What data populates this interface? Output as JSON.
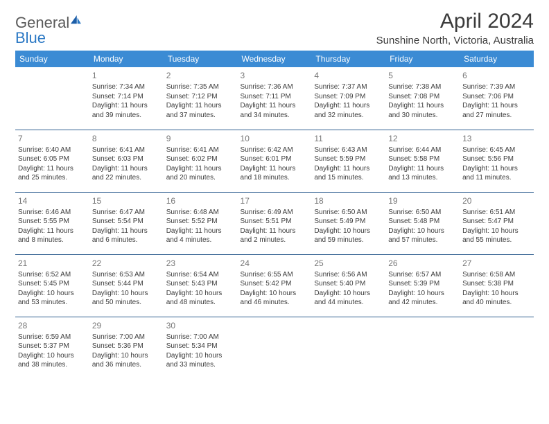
{
  "brand": {
    "word1": "General",
    "word2": "Blue"
  },
  "title": "April 2024",
  "location": "Sunshine North, Victoria, Australia",
  "headers": [
    "Sunday",
    "Monday",
    "Tuesday",
    "Wednesday",
    "Thursday",
    "Friday",
    "Saturday"
  ],
  "colors": {
    "header_bg": "#3b8bd4",
    "header_fg": "#ffffff",
    "row_border": "#2d5d8f",
    "text": "#3a3a3a",
    "daynum": "#777777",
    "brand_gray": "#5a5a5a",
    "brand_blue": "#2b78c4"
  },
  "first_weekday_index": 1,
  "days": [
    {
      "n": 1,
      "sunrise": "7:34 AM",
      "sunset": "7:14 PM",
      "daylight": "11 hours and 39 minutes."
    },
    {
      "n": 2,
      "sunrise": "7:35 AM",
      "sunset": "7:12 PM",
      "daylight": "11 hours and 37 minutes."
    },
    {
      "n": 3,
      "sunrise": "7:36 AM",
      "sunset": "7:11 PM",
      "daylight": "11 hours and 34 minutes."
    },
    {
      "n": 4,
      "sunrise": "7:37 AM",
      "sunset": "7:09 PM",
      "daylight": "11 hours and 32 minutes."
    },
    {
      "n": 5,
      "sunrise": "7:38 AM",
      "sunset": "7:08 PM",
      "daylight": "11 hours and 30 minutes."
    },
    {
      "n": 6,
      "sunrise": "7:39 AM",
      "sunset": "7:06 PM",
      "daylight": "11 hours and 27 minutes."
    },
    {
      "n": 7,
      "sunrise": "6:40 AM",
      "sunset": "6:05 PM",
      "daylight": "11 hours and 25 minutes."
    },
    {
      "n": 8,
      "sunrise": "6:41 AM",
      "sunset": "6:03 PM",
      "daylight": "11 hours and 22 minutes."
    },
    {
      "n": 9,
      "sunrise": "6:41 AM",
      "sunset": "6:02 PM",
      "daylight": "11 hours and 20 minutes."
    },
    {
      "n": 10,
      "sunrise": "6:42 AM",
      "sunset": "6:01 PM",
      "daylight": "11 hours and 18 minutes."
    },
    {
      "n": 11,
      "sunrise": "6:43 AM",
      "sunset": "5:59 PM",
      "daylight": "11 hours and 15 minutes."
    },
    {
      "n": 12,
      "sunrise": "6:44 AM",
      "sunset": "5:58 PM",
      "daylight": "11 hours and 13 minutes."
    },
    {
      "n": 13,
      "sunrise": "6:45 AM",
      "sunset": "5:56 PM",
      "daylight": "11 hours and 11 minutes."
    },
    {
      "n": 14,
      "sunrise": "6:46 AM",
      "sunset": "5:55 PM",
      "daylight": "11 hours and 8 minutes."
    },
    {
      "n": 15,
      "sunrise": "6:47 AM",
      "sunset": "5:54 PM",
      "daylight": "11 hours and 6 minutes."
    },
    {
      "n": 16,
      "sunrise": "6:48 AM",
      "sunset": "5:52 PM",
      "daylight": "11 hours and 4 minutes."
    },
    {
      "n": 17,
      "sunrise": "6:49 AM",
      "sunset": "5:51 PM",
      "daylight": "11 hours and 2 minutes."
    },
    {
      "n": 18,
      "sunrise": "6:50 AM",
      "sunset": "5:49 PM",
      "daylight": "10 hours and 59 minutes."
    },
    {
      "n": 19,
      "sunrise": "6:50 AM",
      "sunset": "5:48 PM",
      "daylight": "10 hours and 57 minutes."
    },
    {
      "n": 20,
      "sunrise": "6:51 AM",
      "sunset": "5:47 PM",
      "daylight": "10 hours and 55 minutes."
    },
    {
      "n": 21,
      "sunrise": "6:52 AM",
      "sunset": "5:45 PM",
      "daylight": "10 hours and 53 minutes."
    },
    {
      "n": 22,
      "sunrise": "6:53 AM",
      "sunset": "5:44 PM",
      "daylight": "10 hours and 50 minutes."
    },
    {
      "n": 23,
      "sunrise": "6:54 AM",
      "sunset": "5:43 PM",
      "daylight": "10 hours and 48 minutes."
    },
    {
      "n": 24,
      "sunrise": "6:55 AM",
      "sunset": "5:42 PM",
      "daylight": "10 hours and 46 minutes."
    },
    {
      "n": 25,
      "sunrise": "6:56 AM",
      "sunset": "5:40 PM",
      "daylight": "10 hours and 44 minutes."
    },
    {
      "n": 26,
      "sunrise": "6:57 AM",
      "sunset": "5:39 PM",
      "daylight": "10 hours and 42 minutes."
    },
    {
      "n": 27,
      "sunrise": "6:58 AM",
      "sunset": "5:38 PM",
      "daylight": "10 hours and 40 minutes."
    },
    {
      "n": 28,
      "sunrise": "6:59 AM",
      "sunset": "5:37 PM",
      "daylight": "10 hours and 38 minutes."
    },
    {
      "n": 29,
      "sunrise": "7:00 AM",
      "sunset": "5:36 PM",
      "daylight": "10 hours and 36 minutes."
    },
    {
      "n": 30,
      "sunrise": "7:00 AM",
      "sunset": "5:34 PM",
      "daylight": "10 hours and 33 minutes."
    }
  ],
  "labels": {
    "sunrise": "Sunrise:",
    "sunset": "Sunset:",
    "daylight": "Daylight:"
  }
}
